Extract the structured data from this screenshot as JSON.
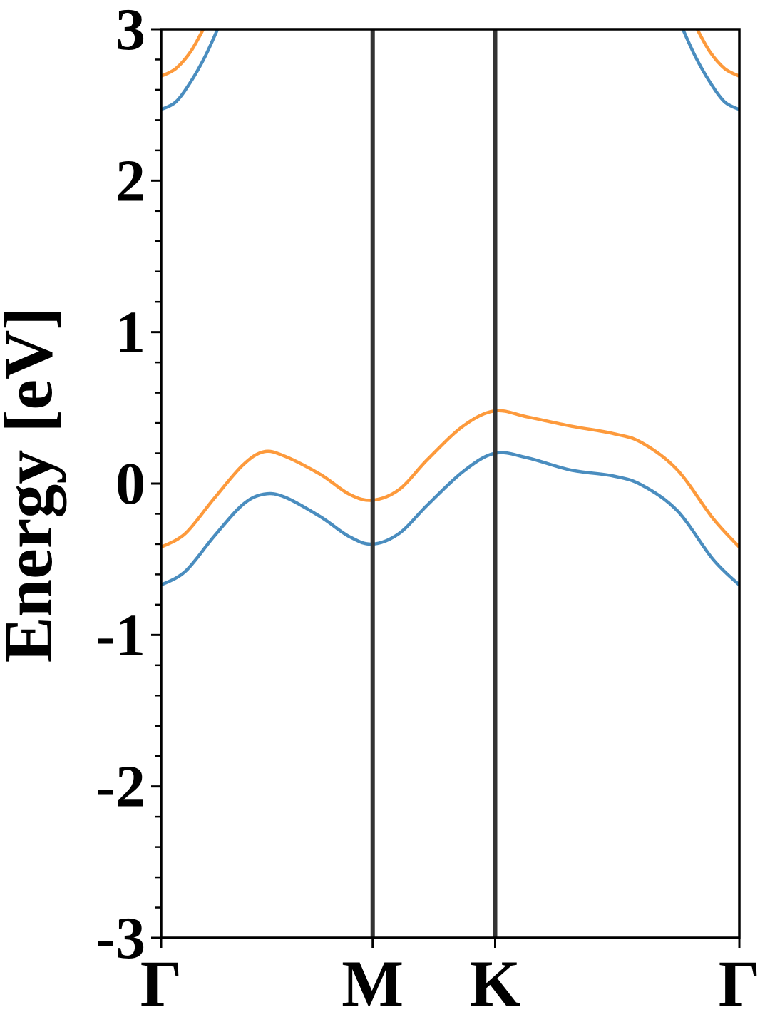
{
  "chart_data": {
    "type": "line",
    "ylabel": "Energy [eV]",
    "xlim": [
      0,
      1.577
    ],
    "ylim": [
      -3,
      3
    ],
    "xticks": [
      {
        "value": 0,
        "label": "Γ"
      },
      {
        "value": 0.577,
        "label": "M"
      },
      {
        "value": 0.911,
        "label": "K"
      },
      {
        "value": 1.577,
        "label": "Γ"
      }
    ],
    "yticks": [
      -3,
      -2,
      -1,
      0,
      1,
      2,
      3
    ],
    "minor_yticks": [
      -2.8,
      -2.6,
      -2.4,
      -2.2,
      -1.8,
      -1.6,
      -1.4,
      -1.2,
      -0.8,
      -0.6,
      -0.4,
      -0.2,
      0.2,
      0.4,
      0.6,
      0.8,
      1.2,
      1.4,
      1.6,
      1.8,
      2.2,
      2.4,
      2.6,
      2.8
    ],
    "kpath_lines": true,
    "series": [
      {
        "color": "#4a8dbf",
        "x": [
          0,
          0.066,
          0.144,
          0.222,
          0.28,
          0.338,
          0.435,
          0.513,
          0.576,
          0.649,
          0.727,
          0.824,
          0.91,
          0.999,
          1.116,
          1.233,
          1.311,
          1.408,
          1.505,
          1.577
        ],
        "values": [
          -0.67,
          -0.58,
          -0.35,
          -0.14,
          -0.07,
          -0.09,
          -0.22,
          -0.35,
          -0.4,
          -0.33,
          -0.14,
          0.08,
          0.2,
          0.17,
          0.09,
          0.05,
          -0.01,
          -0.18,
          -0.5,
          -0.67
        ]
      },
      {
        "color": "#fd9a3c",
        "x": [
          0,
          0.066,
          0.144,
          0.222,
          0.28,
          0.338,
          0.435,
          0.513,
          0.576,
          0.649,
          0.727,
          0.824,
          0.91,
          0.999,
          1.116,
          1.233,
          1.311,
          1.408,
          1.505,
          1.577
        ],
        "values": [
          -0.42,
          -0.33,
          -0.1,
          0.12,
          0.21,
          0.18,
          0.06,
          -0.07,
          -0.11,
          -0.04,
          0.16,
          0.38,
          0.48,
          0.44,
          0.38,
          0.33,
          0.27,
          0.09,
          -0.23,
          -0.42
        ]
      },
      {
        "color": "#4a8dbf",
        "x": [
          0,
          0.04,
          0.08,
          0.12,
          0.154,
          null,
          1.423,
          1.457,
          1.497,
          1.537,
          1.577
        ],
        "values": [
          2.47,
          2.52,
          2.65,
          2.82,
          3.0,
          null,
          3.0,
          2.82,
          2.65,
          2.52,
          2.47
        ]
      },
      {
        "color": "#fd9a3c",
        "x": [
          0,
          0.04,
          0.08,
          0.115,
          null,
          1.462,
          1.497,
          1.537,
          1.577
        ],
        "values": [
          2.69,
          2.74,
          2.85,
          3.0,
          null,
          3.0,
          2.85,
          2.74,
          2.69
        ]
      }
    ]
  }
}
